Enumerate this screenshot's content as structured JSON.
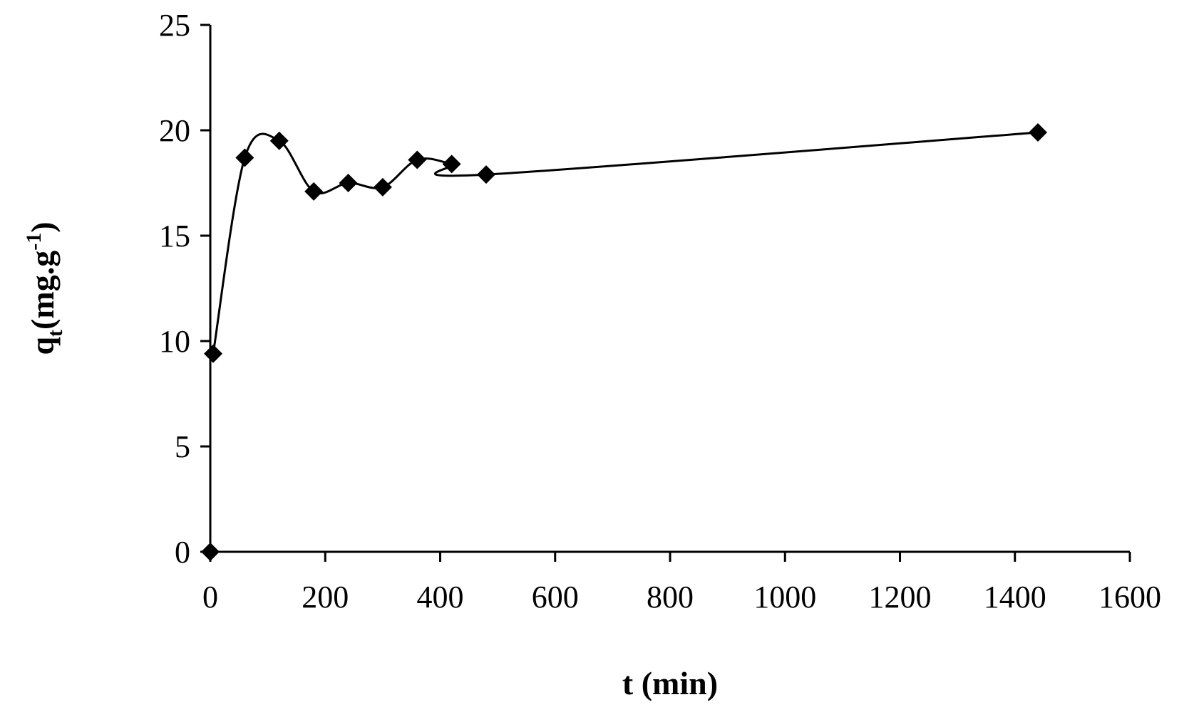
{
  "chart_data": {
    "type": "scatter",
    "title": "",
    "xlabel": "t (min)",
    "ylabel": {
      "base": "q",
      "subscript": "t",
      "unit_prefix": "(mg.g",
      "unit_superscript": "-1",
      "unit_suffix": ")"
    },
    "xlim": [
      0,
      1600
    ],
    "ylim": [
      0,
      25
    ],
    "xticks": [
      0,
      200,
      400,
      600,
      800,
      1000,
      1200,
      1400,
      1600
    ],
    "yticks": [
      0,
      5,
      10,
      15,
      20,
      25
    ],
    "grid": false,
    "legend": "none",
    "marker": "diamond",
    "line": "smoothed",
    "series": [
      {
        "x": [
          0,
          5,
          60,
          120,
          180,
          240,
          300,
          360,
          420,
          480,
          1440
        ],
        "y": [
          0,
          9.4,
          18.7,
          19.5,
          17.1,
          17.5,
          17.3,
          18.6,
          18.4,
          17.9,
          19.9
        ]
      }
    ],
    "color": "#000000"
  }
}
